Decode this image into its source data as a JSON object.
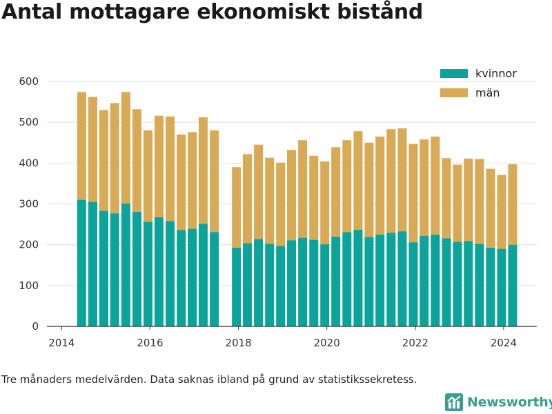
{
  "title": "Antal mottagare ekonomiskt bistånd",
  "footnote": "Tre månaders medelvärden. Data saknas ibland på grund av statistikssekretess.",
  "brand": {
    "name": "Newsworthy",
    "icon": "newsworthy-logo-icon"
  },
  "colors": {
    "kvinnor": "#0ba39a",
    "man": "#d8aa55",
    "grid": "#dddddd",
    "axis": "#333333"
  },
  "chart_data": {
    "type": "bar",
    "stacked": true,
    "title": "Antal mottagare ekonomiskt bistånd",
    "xlabel": "",
    "ylabel": "",
    "ylim": [
      0,
      600
    ],
    "yticks": [
      0,
      100,
      200,
      300,
      400,
      500,
      600
    ],
    "xticks": [
      "2014",
      "2016",
      "2018",
      "2020",
      "2022",
      "2024"
    ],
    "xlim": [
      "2013-09-01",
      "2024-10-01"
    ],
    "grid": true,
    "legend_position": "top-right",
    "x": [
      "2014-06",
      "2014-09",
      "2014-12",
      "2015-03",
      "2015-06",
      "2015-09",
      "2015-12",
      "2016-03",
      "2016-06",
      "2016-09",
      "2016-12",
      "2017-03",
      "2017-06",
      "2017-12",
      "2018-03",
      "2018-06",
      "2018-09",
      "2018-12",
      "2019-03",
      "2019-06",
      "2019-09",
      "2019-12",
      "2020-03",
      "2020-06",
      "2020-09",
      "2020-12",
      "2021-03",
      "2021-06",
      "2021-09",
      "2021-12",
      "2022-03",
      "2022-06",
      "2022-09",
      "2022-12",
      "2023-03",
      "2023-06",
      "2023-09",
      "2023-12",
      "2024-03"
    ],
    "series": [
      {
        "name": "kvinnor",
        "values": [
          310,
          305,
          283,
          277,
          301,
          281,
          256,
          267,
          258,
          236,
          239,
          251,
          231,
          193,
          204,
          214,
          202,
          197,
          211,
          217,
          212,
          201,
          220,
          231,
          237,
          219,
          225,
          229,
          233,
          206,
          222,
          225,
          216,
          207,
          209,
          202,
          193,
          190,
          200
        ]
      },
      {
        "name": "män",
        "values": [
          264,
          257,
          247,
          270,
          273,
          251,
          224,
          249,
          256,
          234,
          237,
          261,
          249,
          197,
          218,
          231,
          211,
          204,
          221,
          239,
          206,
          203,
          219,
          225,
          241,
          231,
          240,
          254,
          252,
          241,
          236,
          240,
          196,
          189,
          202,
          208,
          193,
          181,
          197
        ]
      }
    ]
  }
}
